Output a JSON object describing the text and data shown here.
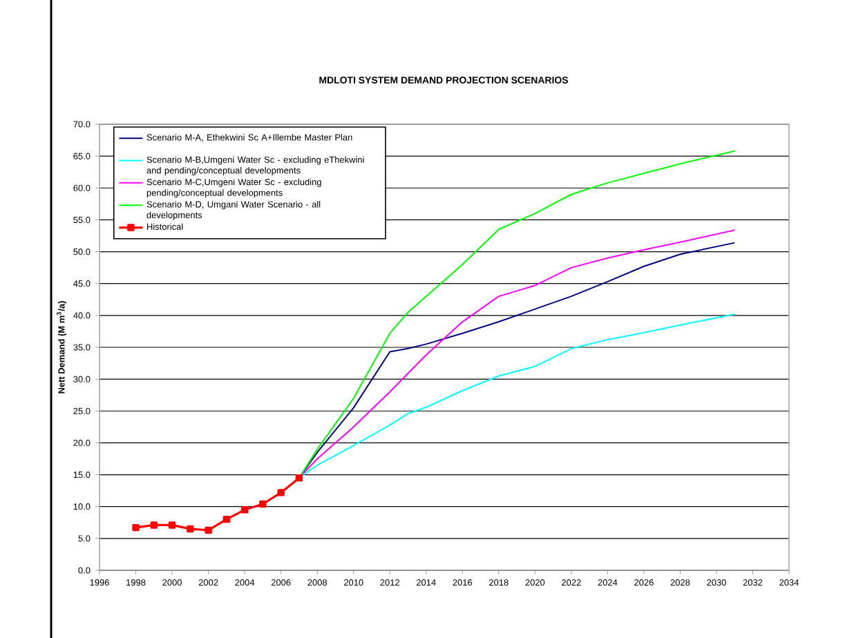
{
  "chart_data": {
    "type": "line",
    "title": "MDLOTI SYSTEM DEMAND PROJECTION SCENARIOS",
    "ylabel": "Nett Demand (M m$^{3}$/a)",
    "xlim": [
      1996,
      2034
    ],
    "xticks": [
      1996,
      1998,
      2000,
      2002,
      2004,
      2006,
      2008,
      2010,
      2012,
      2014,
      2016,
      2018,
      2020,
      2022,
      2024,
      2026,
      2028,
      2030,
      2032,
      2034
    ],
    "ylim": [
      0,
      70
    ],
    "yticks": [
      {
        "value": 0,
        "label": "0.0"
      },
      {
        "value": 5,
        "label": "5.0"
      },
      {
        "value": 10,
        "label": "10.0"
      },
      {
        "value": 15,
        "label": "15.0"
      },
      {
        "value": 20,
        "label": "20.0"
      },
      {
        "value": 25,
        "label": "25.0"
      },
      {
        "value": 30,
        "label": "30.0"
      },
      {
        "value": 35,
        "label": "35.0"
      },
      {
        "value": 40,
        "label": "40.0"
      },
      {
        "value": 45,
        "label": "45.0"
      },
      {
        "value": 50,
        "label": "50.0"
      },
      {
        "value": 55,
        "label": "55.0"
      },
      {
        "value": 60,
        "label": "60.0"
      },
      {
        "value": 65,
        "label": "65.0"
      },
      {
        "value": 70,
        "label": "70.0"
      }
    ],
    "grid": "y",
    "legend": "top left",
    "series": [
      {
        "name": "Scenario M-A, Ethekwini Sc A+Illembe Master Plan",
        "color": "#000080",
        "marker": "none",
        "x": [
          2007,
          2008,
          2010,
          2012,
          2013,
          2014,
          2016,
          2018,
          2020,
          2022,
          2024,
          2026,
          2028,
          2031
        ],
        "values": [
          14.5,
          18.5,
          25.5,
          34.3,
          34.8,
          35.5,
          37.2,
          39.0,
          41.0,
          43.0,
          45.3,
          47.7,
          49.6,
          51.4
        ]
      },
      {
        "name": "Scenario M-B,Umgeni Water Sc - excluding eThekwini and  pending/conceptual developments",
        "color": "#00ffff",
        "marker": "none",
        "x": [
          2007,
          2008,
          2010,
          2012,
          2013,
          2014,
          2016,
          2018,
          2020,
          2022,
          2024,
          2026,
          2028,
          2031
        ],
        "values": [
          14.5,
          16.5,
          19.6,
          22.8,
          24.6,
          25.6,
          28.2,
          30.5,
          32.0,
          34.8,
          36.2,
          37.3,
          38.5,
          40.2
        ]
      },
      {
        "name": "Scenario M-C,Umgeni Water Sc - excluding pending/conceptual developments",
        "color": "#ff00ff",
        "marker": "none",
        "x": [
          2007,
          2008,
          2010,
          2012,
          2014,
          2016,
          2018,
          2020,
          2022,
          2024,
          2026,
          2028,
          2031
        ],
        "values": [
          14.5,
          17.5,
          22.5,
          28.0,
          33.8,
          39.0,
          43.0,
          44.7,
          47.5,
          49.0,
          50.3,
          51.5,
          53.4
        ]
      },
      {
        "name": "Scenario M-D, Umgani Water Scenario - all developments",
        "color": "#00ff00",
        "marker": "none",
        "x": [
          2007,
          2008,
          2010,
          2012,
          2013,
          2014,
          2016,
          2018,
          2020,
          2022,
          2024,
          2026,
          2028,
          2031
        ],
        "values": [
          14.5,
          19.0,
          27.0,
          37.2,
          40.5,
          43.0,
          48.0,
          53.5,
          56.0,
          59.0,
          60.8,
          62.3,
          63.8,
          65.8
        ]
      },
      {
        "name": "Historical",
        "color": "#ff0000",
        "marker": "square",
        "x": [
          1998,
          1999,
          2000,
          2001,
          2002,
          2003,
          2004,
          2005,
          2006,
          2007
        ],
        "values": [
          6.7,
          7.1,
          7.1,
          6.5,
          6.3,
          8.0,
          9.5,
          10.4,
          12.2,
          14.5
        ]
      }
    ]
  }
}
